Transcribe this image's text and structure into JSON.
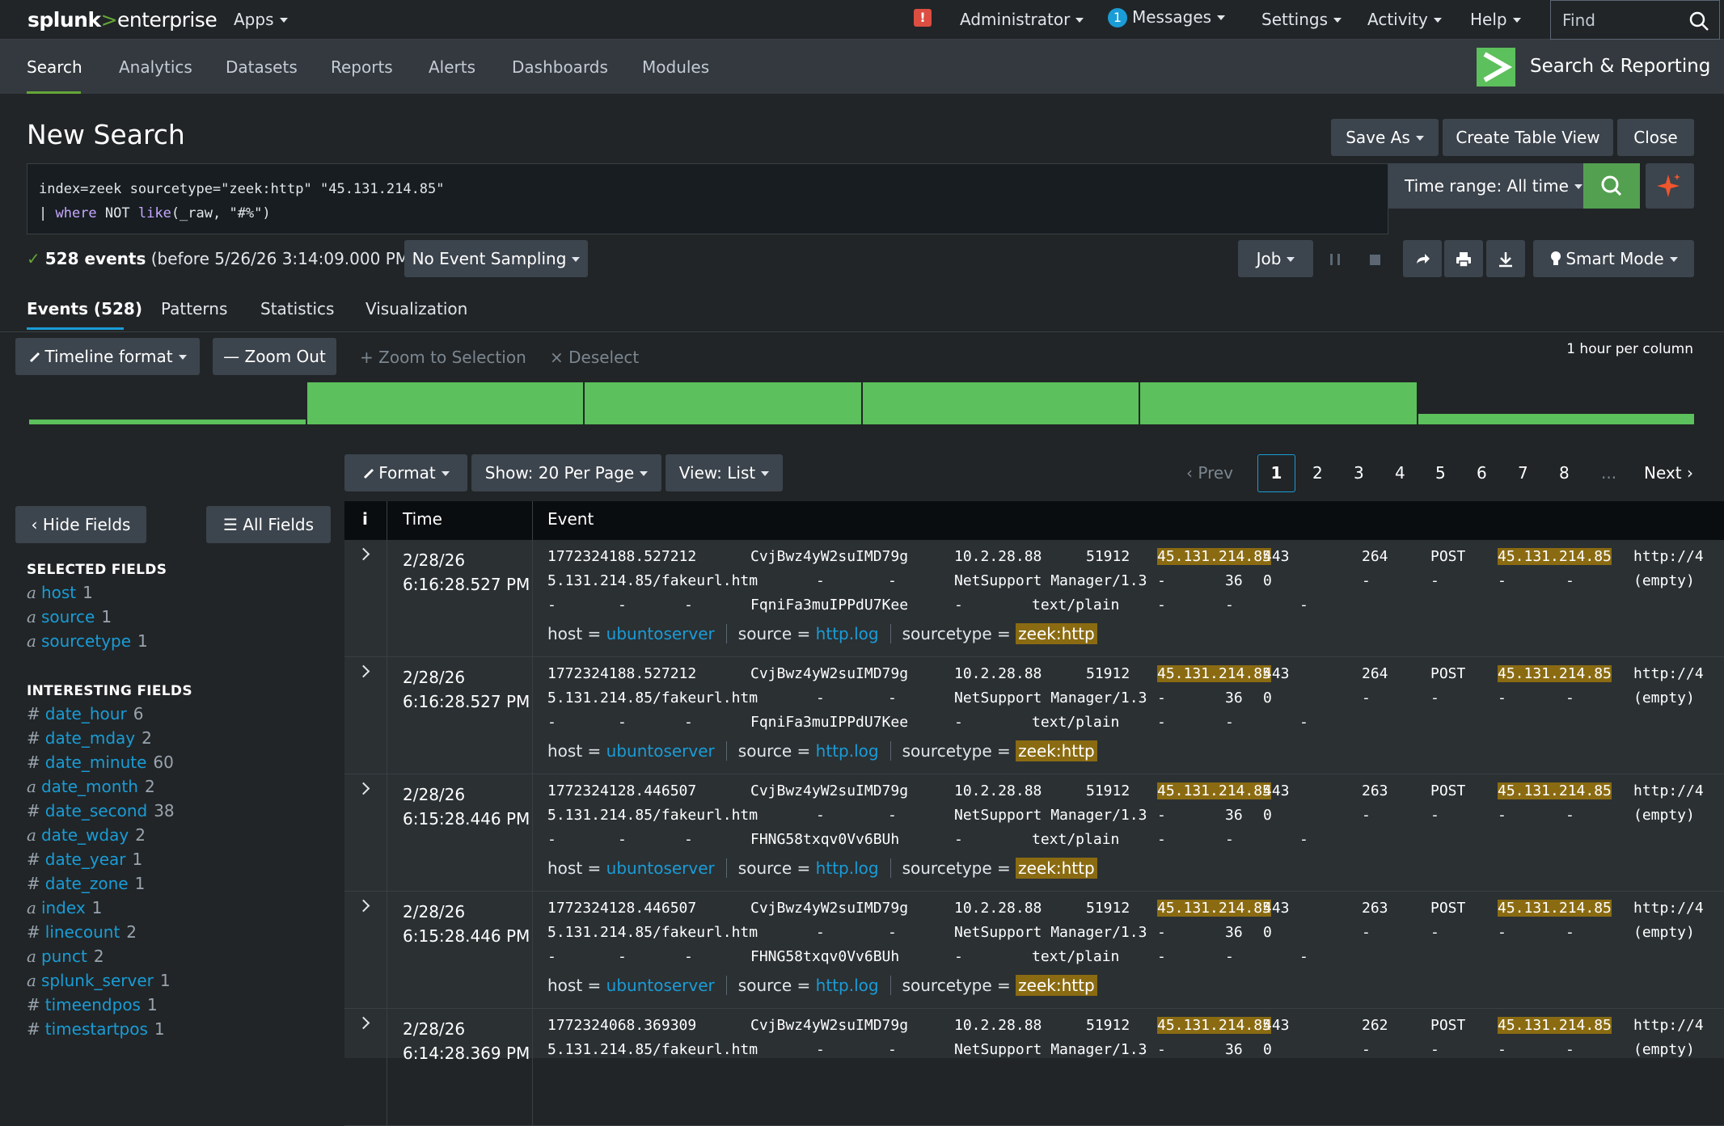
{
  "topbar": {
    "logo_main": "splunk",
    "logo_gt": ">",
    "logo_ent": "enterprise",
    "apps": "Apps",
    "alert": "!",
    "administrator": "Administrator",
    "messages_count": "1",
    "messages": "Messages",
    "settings": "Settings",
    "activity": "Activity",
    "help": "Help",
    "find": "Find"
  },
  "appbar": {
    "tabs": [
      "Search",
      "Analytics",
      "Datasets",
      "Reports",
      "Alerts",
      "Dashboards",
      "Modules"
    ],
    "app_name": "Search & Reporting"
  },
  "page": {
    "title": "New Search",
    "save_as": "Save As",
    "create_table_view": "Create Table View",
    "close": "Close"
  },
  "search": {
    "line1": "index=zeek sourcetype=\"zeek:http\" \"45.131.214.85\"",
    "line2_pipe": "| ",
    "line2_where": "where",
    "line2_not": " NOT ",
    "line2_like": "like",
    "line2_rest": "(_raw, \"#%\")",
    "time_range": "Time range: All time"
  },
  "status": {
    "count": "528 events",
    "before": "(before 5/26/26 3:14:09.000 PM)",
    "sampling": "No Event Sampling",
    "job": "Job",
    "smart_mode": "Smart Mode"
  },
  "event_tabs": [
    "Events (528)",
    "Patterns",
    "Statistics",
    "Visualization"
  ],
  "timeline": {
    "format": "Timeline format",
    "zoom_out": "Zoom Out",
    "zoom_sel": "Zoom to Selection",
    "deselect": "Deselect",
    "scale": "1 hour per column",
    "bars": [
      0.12,
      1,
      1,
      1,
      1,
      0.25
    ]
  },
  "results_bar": {
    "format": "Format",
    "per_page": "Show: 20 Per Page",
    "view": "View: List",
    "prev": "Prev",
    "pages": [
      "1",
      "2",
      "3",
      "4",
      "5",
      "6",
      "7",
      "8"
    ],
    "ellipsis": "...",
    "next": "Next"
  },
  "sidebar": {
    "hide_fields": "Hide Fields",
    "all_fields": "All Fields",
    "selected_header": "SELECTED FIELDS",
    "selected": [
      {
        "type": "a",
        "name": "host",
        "count": "1"
      },
      {
        "type": "a",
        "name": "source",
        "count": "1"
      },
      {
        "type": "a",
        "name": "sourcetype",
        "count": "1"
      }
    ],
    "interesting_header": "INTERESTING FIELDS",
    "interesting": [
      {
        "type": "#",
        "name": "date_hour",
        "count": "6"
      },
      {
        "type": "#",
        "name": "date_mday",
        "count": "2"
      },
      {
        "type": "#",
        "name": "date_minute",
        "count": "60"
      },
      {
        "type": "a",
        "name": "date_month",
        "count": "2"
      },
      {
        "type": "#",
        "name": "date_second",
        "count": "38"
      },
      {
        "type": "a",
        "name": "date_wday",
        "count": "2"
      },
      {
        "type": "#",
        "name": "date_year",
        "count": "1"
      },
      {
        "type": "#",
        "name": "date_zone",
        "count": "1"
      },
      {
        "type": "a",
        "name": "index",
        "count": "1"
      },
      {
        "type": "#",
        "name": "linecount",
        "count": "2"
      },
      {
        "type": "a",
        "name": "punct",
        "count": "2"
      },
      {
        "type": "a",
        "name": "splunk_server",
        "count": "1"
      },
      {
        "type": "#",
        "name": "timeendpos",
        "count": "1"
      },
      {
        "type": "#",
        "name": "timestartpos",
        "count": "1"
      }
    ]
  },
  "table": {
    "col_i": "i",
    "col_time": "Time",
    "col_event": "Event",
    "meta": {
      "host_k": "host =",
      "host_v": "ubuntoserver",
      "source_k": "source =",
      "source_v": "http.log",
      "st_k": "sourcetype =",
      "st_v": "zeek:http"
    },
    "rows": [
      {
        "date": "2/28/26",
        "time": "6:16:28.527 PM",
        "ts": "1772324188.527212",
        "uid": "CvjBwz4yW2suIMD79g",
        "fuid": "FqniFa3muIPPdU7Kee",
        "len": "264"
      },
      {
        "date": "2/28/26",
        "time": "6:16:28.527 PM",
        "ts": "1772324188.527212",
        "uid": "CvjBwz4yW2suIMD79g",
        "fuid": "FqniFa3muIPPdU7Kee",
        "len": "264"
      },
      {
        "date": "2/28/26",
        "time": "6:15:28.446 PM",
        "ts": "1772324128.446507",
        "uid": "CvjBwz4yW2suIMD79g",
        "fuid": "FHNG58txqv0Vv6BUh",
        "len": "263"
      },
      {
        "date": "2/28/26",
        "time": "6:15:28.446 PM",
        "ts": "1772324128.446507",
        "uid": "CvjBwz4yW2suIMD79g",
        "fuid": "FHNG58txqv0Vv6BUh",
        "len": "263"
      },
      {
        "date": "2/28/26",
        "time": "6:14:28.369 PM",
        "ts": "1772324068.369309",
        "uid": "CvjBwz4yW2suIMD79g",
        "fuid": "",
        "len": "262"
      }
    ],
    "src_ip": "10.2.28.88",
    "src_port": "51912",
    "dst_ip": "45.131.214.85",
    "dst_port": "443",
    "method": "POST",
    "url_start": "http://4",
    "url_cont": "5.131.214.85/fakeurl.htm",
    "ua": "NetSupport Manager/1.3",
    "n36": "36",
    "zero": "0",
    "dash": "-",
    "mime": "text/plain",
    "empty": "(empty)"
  }
}
